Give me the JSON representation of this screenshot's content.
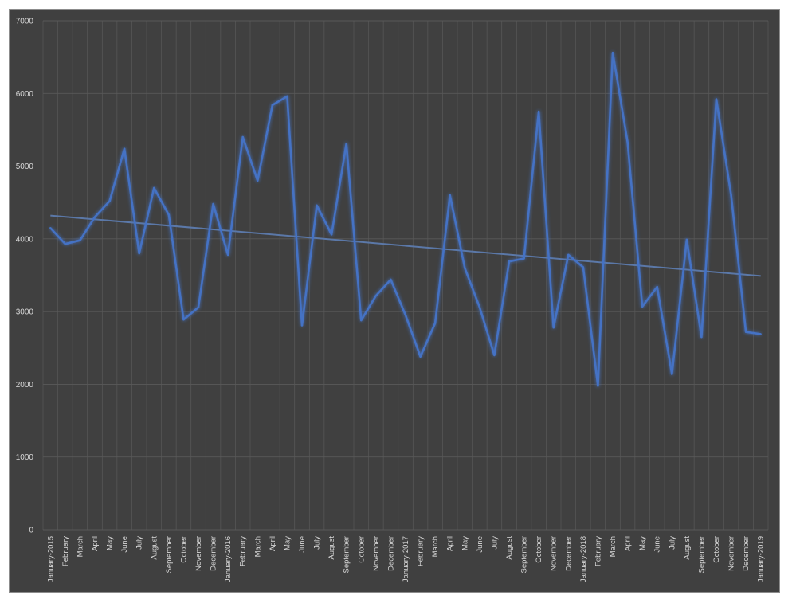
{
  "chart_data": {
    "type": "line",
    "title": "",
    "xlabel": "",
    "ylabel": "",
    "ylim": [
      0,
      7000
    ],
    "yticks": [
      0,
      1000,
      2000,
      3000,
      4000,
      5000,
      6000,
      7000
    ],
    "grid": true,
    "legend": "none",
    "colors": {
      "background": "#404040",
      "series": "#4472c4",
      "trend": "#5b78a8",
      "grid": "#595959",
      "text": "#d9d9d9"
    },
    "categories": [
      "January-2015",
      "February",
      "March",
      "April",
      "May",
      "June",
      "July",
      "August",
      "September",
      "October",
      "November",
      "December",
      "January-2016",
      "February",
      "March",
      "April",
      "May",
      "June",
      "July",
      "August",
      "September",
      "October",
      "November",
      "December",
      "January-2017",
      "February",
      "March",
      "April",
      "May",
      "June",
      "July",
      "August",
      "September",
      "October",
      "November",
      "December",
      "January-2018",
      "February",
      "March",
      "April",
      "May",
      "June",
      "July",
      "August",
      "September",
      "October",
      "November",
      "December",
      "January-2019"
    ],
    "series": [
      {
        "values": [
          4150,
          3930,
          3980,
          4300,
          4520,
          5240,
          3800,
          4700,
          4330,
          2890,
          3060,
          4480,
          3780,
          5400,
          4800,
          5840,
          5960,
          2810,
          4460,
          4060,
          5310,
          2880,
          3220,
          3440,
          2950,
          2380,
          2840,
          4600,
          3600,
          3060,
          2400,
          3690,
          3730,
          5750,
          2780,
          3780,
          3610,
          1980,
          6560,
          5330,
          3070,
          3340,
          2140,
          3990,
          2650,
          5920,
          4600,
          2720,
          2690
        ]
      }
    ],
    "trendline": {
      "start": 4320,
      "end": 3490
    }
  }
}
